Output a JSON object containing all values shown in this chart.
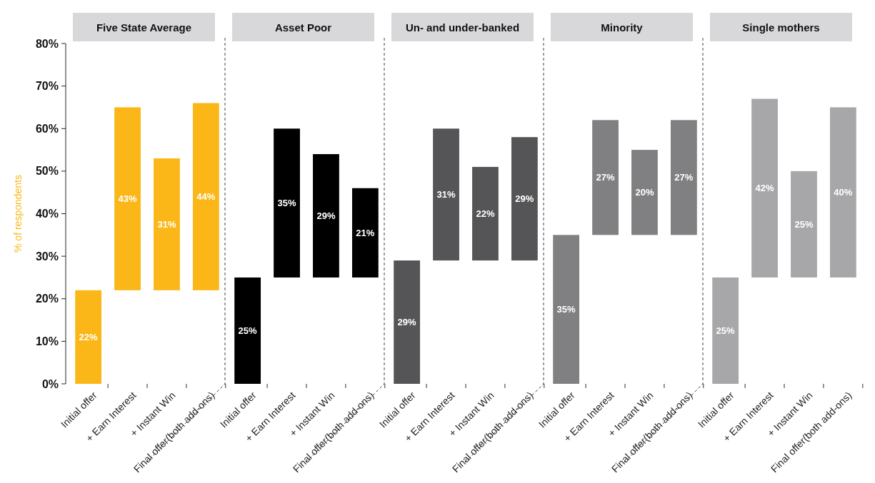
{
  "chart_data": [
    {
      "type": "bar",
      "title": "Five State Average",
      "ylabel": "% of respondents",
      "categories": [
        "Initial offer",
        "+ Earn Interest",
        "+ Instant Win",
        "Final offer(both add-ons)"
      ],
      "values": [
        22,
        43,
        31,
        44
      ],
      "base": [
        0,
        22,
        22,
        22
      ],
      "value_labels": [
        "22%",
        "43%",
        "31%",
        "44%"
      ],
      "color": "#fbb718",
      "ylim": [
        0,
        80
      ],
      "yticks": [
        {
          "value": 0,
          "label": "0%"
        },
        {
          "value": 10,
          "label": "10%"
        },
        {
          "value": 20,
          "label": "20%"
        },
        {
          "value": 30,
          "label": "30%"
        },
        {
          "value": 40,
          "label": "40%"
        },
        {
          "value": 50,
          "label": "50%"
        },
        {
          "value": 60,
          "label": "60%"
        },
        {
          "value": 70,
          "label": "70%"
        },
        {
          "value": 80,
          "label": "80%"
        }
      ],
      "grid": false
    },
    {
      "type": "bar",
      "title": "Asset Poor",
      "categories": [
        "Initial offer",
        "+ Earn Interest",
        "+ Instant Win",
        "Final offer(both add-ons)"
      ],
      "values": [
        25,
        35,
        29,
        21
      ],
      "base": [
        0,
        25,
        25,
        25
      ],
      "value_labels": [
        "25%",
        "35%",
        "29%",
        "21%"
      ],
      "color": "#000000",
      "ylim": [
        0,
        80
      ],
      "tick_labels": "x"
    },
    {
      "type": "bar",
      "title": "Un- and under-banked",
      "categories": [
        "Initial offer",
        "+ Earn Interest",
        "+ Instant Win",
        "Final offer(both add-ons)"
      ],
      "values": [
        29,
        31,
        22,
        29
      ],
      "base": [
        0,
        29,
        29,
        29
      ],
      "value_labels": [
        "29%",
        "31%",
        "22%",
        "29%"
      ],
      "color": "#555557",
      "ylim": [
        0,
        80
      ],
      "tick_labels": "x"
    },
    {
      "type": "bar",
      "title": "Minority",
      "categories": [
        "Initial offer",
        "+ Earn Interest",
        "+ Instant Win",
        "Final offer(both add-ons)"
      ],
      "values": [
        35,
        27,
        20,
        27
      ],
      "base": [
        0,
        35,
        35,
        35
      ],
      "value_labels": [
        "35%",
        "27%",
        "20%",
        "27%"
      ],
      "color": "#808083",
      "ylim": [
        0,
        80
      ],
      "tick_labels": "x"
    },
    {
      "type": "bar",
      "title": "Single mothers",
      "categories": [
        "Initial offer",
        "+ Earn Interest",
        "+ Instant Win",
        "Final offer(both add-ons)"
      ],
      "values": [
        25,
        42,
        25,
        40
      ],
      "base": [
        0,
        25,
        25,
        25
      ],
      "value_labels": [
        "25%",
        "42%",
        "25%",
        "40%"
      ],
      "color": "#a7a7aa",
      "ylim": [
        0,
        80
      ],
      "tick_labels": "x"
    }
  ]
}
